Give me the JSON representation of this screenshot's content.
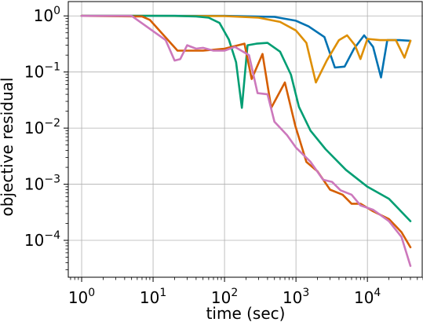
{
  "chart_data": {
    "type": "line",
    "xlabel": "time (sec)",
    "ylabel": "objective residual",
    "x_scale": "log",
    "y_scale": "log",
    "xlim": [
      0.65,
      60000
    ],
    "ylim": [
      2.2e-05,
      1.8
    ],
    "grid": true,
    "x_ticks": [
      {
        "value": 1,
        "base": "10",
        "exp": "0"
      },
      {
        "value": 10,
        "base": "10",
        "exp": "1"
      },
      {
        "value": 100,
        "base": "10",
        "exp": "2"
      },
      {
        "value": 1000,
        "base": "10",
        "exp": "3"
      },
      {
        "value": 10000,
        "base": "10",
        "exp": "4"
      }
    ],
    "y_ticks": [
      {
        "value": 1,
        "base": "10",
        "exp": "0"
      },
      {
        "value": 0.1,
        "base": "10",
        "exp": "−1"
      },
      {
        "value": 0.01,
        "base": "10",
        "exp": "−2"
      },
      {
        "value": 0.001,
        "base": "10",
        "exp": "−3"
      },
      {
        "value": 0.0001,
        "base": "10",
        "exp": "−4"
      }
    ],
    "series": [
      {
        "color": "#0072b2",
        "points": [
          [
            1,
            1
          ],
          [
            10,
            1
          ],
          [
            100,
            1
          ],
          [
            500,
            0.96
          ],
          [
            1000,
            0.82
          ],
          [
            1500,
            0.65
          ],
          [
            2500,
            0.42
          ],
          [
            3500,
            0.12
          ],
          [
            4800,
            0.125
          ],
          [
            6500,
            0.26
          ],
          [
            9000,
            0.45
          ],
          [
            12000,
            0.28
          ],
          [
            15500,
            0.08
          ],
          [
            19000,
            0.37
          ],
          [
            28000,
            0.37
          ],
          [
            40000,
            0.36
          ]
        ]
      },
      {
        "color": "#de8f05",
        "points": [
          [
            1,
            1
          ],
          [
            10,
            1
          ],
          [
            100,
            0.99
          ],
          [
            300,
            0.93
          ],
          [
            600,
            0.78
          ],
          [
            1000,
            0.55
          ],
          [
            1400,
            0.33
          ],
          [
            1900,
            0.065
          ],
          [
            2700,
            0.16
          ],
          [
            4000,
            0.37
          ],
          [
            5200,
            0.45
          ],
          [
            6700,
            0.3
          ],
          [
            8000,
            0.17
          ],
          [
            10000,
            0.39
          ],
          [
            15000,
            0.37
          ],
          [
            25000,
            0.37
          ],
          [
            33000,
            0.18
          ],
          [
            40000,
            0.36
          ]
        ]
      },
      {
        "color": "#029e73",
        "points": [
          [
            1,
            1
          ],
          [
            20,
            1
          ],
          [
            40,
            0.98
          ],
          [
            60,
            0.93
          ],
          [
            85,
            0.75
          ],
          [
            115,
            0.38
          ],
          [
            145,
            0.15
          ],
          [
            175,
            0.023
          ],
          [
            210,
            0.3
          ],
          [
            280,
            0.32
          ],
          [
            400,
            0.33
          ],
          [
            600,
            0.23
          ],
          [
            850,
            0.09
          ],
          [
            1100,
            0.024
          ],
          [
            1600,
            0.009
          ],
          [
            2600,
            0.0042
          ],
          [
            5000,
            0.0018
          ],
          [
            10000,
            0.0009
          ],
          [
            20000,
            0.00055
          ],
          [
            40000,
            0.00022
          ]
        ]
      },
      {
        "color": "#d55e00",
        "points": [
          [
            1,
            1
          ],
          [
            7,
            0.98
          ],
          [
            9,
            0.85
          ],
          [
            22,
            0.24
          ],
          [
            50,
            0.24
          ],
          [
            100,
            0.26
          ],
          [
            190,
            0.32
          ],
          [
            240,
            0.075
          ],
          [
            340,
            0.21
          ],
          [
            450,
            0.023
          ],
          [
            700,
            0.065
          ],
          [
            980,
            0.011
          ],
          [
            1400,
            0.0025
          ],
          [
            2000,
            0.0017
          ],
          [
            3000,
            0.0008
          ],
          [
            4500,
            0.00065
          ],
          [
            6000,
            0.00045
          ],
          [
            8000,
            0.00045
          ],
          [
            12000,
            0.00033
          ],
          [
            20000,
            0.00024
          ],
          [
            30000,
            0.00014
          ],
          [
            40000,
            7.5e-05
          ]
        ]
      },
      {
        "color": "#cc78bc",
        "points": [
          [
            1,
            1
          ],
          [
            5,
            1
          ],
          [
            15,
            0.37
          ],
          [
            20,
            0.16
          ],
          [
            24,
            0.17
          ],
          [
            30,
            0.3
          ],
          [
            40,
            0.26
          ],
          [
            50,
            0.27
          ],
          [
            70,
            0.24
          ],
          [
            100,
            0.24
          ],
          [
            140,
            0.28
          ],
          [
            220,
            0.2
          ],
          [
            290,
            0.042
          ],
          [
            400,
            0.04
          ],
          [
            500,
            0.013
          ],
          [
            750,
            0.0075
          ],
          [
            1000,
            0.0045
          ],
          [
            1600,
            0.0025
          ],
          [
            2400,
            0.0012
          ],
          [
            3200,
            0.0011
          ],
          [
            4200,
            0.00078
          ],
          [
            6000,
            0.00065
          ],
          [
            8000,
            0.00042
          ],
          [
            12000,
            0.00035
          ],
          [
            20000,
            0.00022
          ],
          [
            30000,
            0.000115
          ],
          [
            40000,
            3.5e-05
          ]
        ]
      }
    ]
  }
}
